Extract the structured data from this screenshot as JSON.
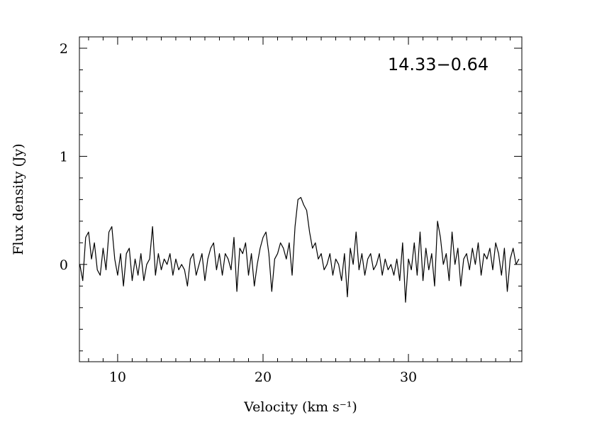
{
  "chart_data": {
    "type": "line",
    "annotation": "14.33−0.64",
    "x_label": "Velocity (km s⁻¹)",
    "y_label": "Flux density (Jy)",
    "color": "#000000",
    "x": [
      7.4,
      7.6,
      7.8,
      8,
      8.2,
      8.4,
      8.6,
      8.8,
      9,
      9.2,
      9.4,
      9.6,
      9.8,
      10,
      10.2,
      10.4,
      10.6,
      10.8,
      11,
      11.2,
      11.4,
      11.6,
      11.8,
      12,
      12.2,
      12.4,
      12.6,
      12.8,
      13,
      13.2,
      13.4,
      13.6,
      13.8,
      14,
      14.2,
      14.4,
      14.6,
      14.8,
      15,
      15.2,
      15.4,
      15.6,
      15.8,
      16,
      16.2,
      16.4,
      16.6,
      16.8,
      17,
      17.2,
      17.4,
      17.6,
      17.8,
      18,
      18.2,
      18.4,
      18.6,
      18.8,
      19,
      19.2,
      19.4,
      19.6,
      19.8,
      20,
      20.2,
      20.4,
      20.6,
      20.8,
      21,
      21.2,
      21.4,
      21.6,
      21.8,
      22,
      22.2,
      22.4,
      22.6,
      22.8,
      23,
      23.2,
      23.4,
      23.6,
      23.8,
      24,
      24.2,
      24.4,
      24.6,
      24.8,
      25,
      25.2,
      25.4,
      25.6,
      25.8,
      26,
      26.2,
      26.4,
      26.6,
      26.8,
      27,
      27.2,
      27.4,
      27.6,
      27.8,
      28,
      28.2,
      28.4,
      28.6,
      28.8,
      29,
      29.2,
      29.4,
      29.6,
      29.8,
      30,
      30.2,
      30.4,
      30.6,
      30.8,
      31,
      31.2,
      31.4,
      31.6,
      31.8,
      32,
      32.2,
      32.4,
      32.6,
      32.8,
      33,
      33.2,
      33.4,
      33.6,
      33.8,
      34,
      34.2,
      34.4,
      34.6,
      34.8,
      35,
      35.2,
      35.4,
      35.6,
      35.8,
      36,
      36.2,
      36.4,
      36.6,
      36.8,
      37,
      37.2,
      37.4,
      37.6
    ],
    "values": [
      0.0,
      -0.15,
      0.25,
      0.3,
      0.05,
      0.2,
      -0.05,
      -0.1,
      0.15,
      -0.05,
      0.3,
      0.35,
      0.05,
      -0.1,
      0.1,
      -0.2,
      0.1,
      0.15,
      -0.15,
      0.05,
      -0.1,
      0.1,
      -0.15,
      0.0,
      0.05,
      0.35,
      -0.1,
      0.1,
      -0.05,
      0.05,
      0.0,
      0.1,
      -0.1,
      0.05,
      -0.05,
      0.0,
      -0.05,
      -0.2,
      0.05,
      0.1,
      -0.1,
      0.0,
      0.1,
      -0.15,
      0.05,
      0.15,
      0.2,
      -0.05,
      0.1,
      -0.1,
      0.1,
      0.05,
      -0.05,
      0.25,
      -0.25,
      0.15,
      0.1,
      0.2,
      -0.1,
      0.1,
      -0.2,
      0.0,
      0.15,
      0.25,
      0.3,
      0.1,
      -0.25,
      0.05,
      0.1,
      0.2,
      0.15,
      0.05,
      0.2,
      -0.1,
      0.35,
      0.6,
      0.62,
      0.55,
      0.5,
      0.3,
      0.15,
      0.2,
      0.05,
      0.1,
      -0.05,
      0.0,
      0.1,
      -0.1,
      0.05,
      0.0,
      -0.15,
      0.1,
      -0.3,
      0.15,
      0.0,
      0.3,
      -0.05,
      0.1,
      -0.1,
      0.05,
      0.1,
      -0.05,
      0.0,
      0.1,
      -0.1,
      0.05,
      -0.05,
      0.0,
      -0.1,
      0.05,
      -0.15,
      0.2,
      -0.35,
      0.05,
      -0.05,
      0.2,
      -0.1,
      0.3,
      -0.15,
      0.15,
      -0.05,
      0.1,
      -0.2,
      0.4,
      0.25,
      0.0,
      0.1,
      -0.15,
      0.3,
      0.0,
      0.15,
      -0.2,
      0.05,
      0.1,
      -0.05,
      0.15,
      0.0,
      0.2,
      -0.1,
      0.1,
      0.05,
      0.15,
      -0.05,
      0.2,
      0.1,
      -0.1,
      0.15,
      -0.25,
      0.05,
      0.15,
      0.0,
      0.05
    ],
    "xlim": [
      7.37,
      37.8
    ],
    "xticks": [
      10,
      20,
      30
    ],
    "xminorticks": [
      8,
      9,
      11,
      12,
      13,
      14,
      15,
      16,
      17,
      18,
      19,
      21,
      22,
      23,
      24,
      25,
      26,
      27,
      28,
      29,
      31,
      32,
      33,
      34,
      35,
      36,
      37
    ],
    "ylim": [
      -0.9,
      2.105
    ],
    "yticks": [
      0,
      1,
      2
    ],
    "yminorticks": [
      -0.8,
      -0.6,
      -0.4,
      -0.2,
      0.2,
      0.4,
      0.6,
      0.8,
      1.2,
      1.4,
      1.6,
      1.8,
      2.0
    ]
  }
}
